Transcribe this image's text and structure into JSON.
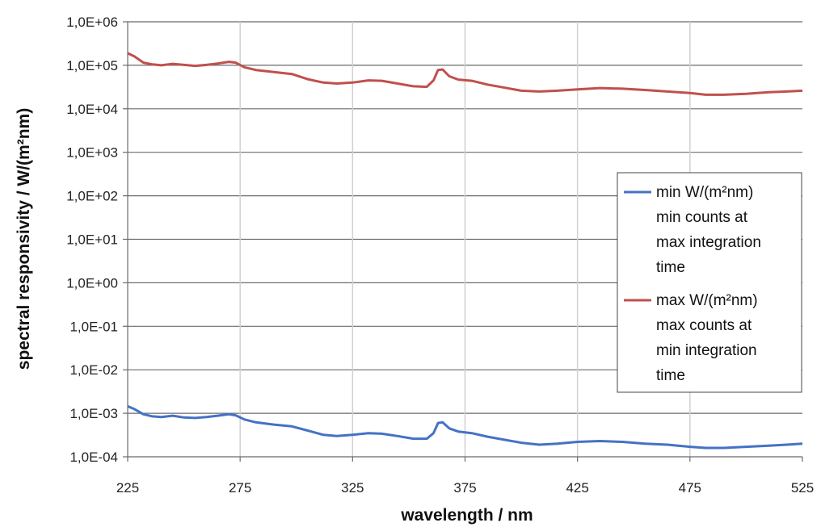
{
  "chart_data": {
    "type": "line",
    "xlabel": "wavelength / nm",
    "ylabel": "spectral responsivity / W/(m²nm)",
    "x_ticks": [
      "225",
      "275",
      "325",
      "375",
      "425",
      "475",
      "525"
    ],
    "y_ticks": [
      "1,0E-04",
      "1,0E-03",
      "1,0E-02",
      "1,0E-01",
      "1,0E+00",
      "1,0E+01",
      "1,0E+02",
      "1,0E+03",
      "1,0E+04",
      "1,0E+05",
      "1,0E+06"
    ],
    "xlim": [
      225,
      525
    ],
    "ylim": [
      0.0001,
      1000000
    ],
    "y_scale": "log",
    "grid": true,
    "legend_position": "right",
    "series": [
      {
        "name": "min W/(m²nm) min counts at max integration time",
        "color": "#4472C4",
        "x": [
          225,
          228,
          232,
          236,
          240,
          245,
          250,
          255,
          260,
          265,
          270,
          273,
          277,
          282,
          290,
          298,
          305,
          312,
          318,
          325,
          332,
          338,
          345,
          352,
          358,
          361,
          363,
          365,
          368,
          372,
          378,
          385,
          392,
          400,
          408,
          416,
          425,
          435,
          445,
          455,
          465,
          475,
          482,
          490,
          500,
          510,
          518,
          525
        ],
        "y": [
          0.00145,
          0.00125,
          0.00095,
          0.00085,
          0.00082,
          0.00088,
          0.0008,
          0.00078,
          0.00082,
          0.00088,
          0.00095,
          0.0009,
          0.00072,
          0.00062,
          0.00055,
          0.0005,
          0.0004,
          0.00032,
          0.0003,
          0.00032,
          0.00035,
          0.00034,
          0.0003,
          0.00026,
          0.00026,
          0.00035,
          0.0006,
          0.00062,
          0.00045,
          0.00038,
          0.00035,
          0.00029,
          0.00025,
          0.00021,
          0.00019,
          0.0002,
          0.00022,
          0.00023,
          0.00022,
          0.0002,
          0.00019,
          0.00017,
          0.00016,
          0.00016,
          0.00017,
          0.00018,
          0.00019,
          0.0002
        ]
      },
      {
        "name": "max W/(m²nm) max counts at min integration time",
        "color": "#C0504D",
        "x": [
          225,
          228,
          232,
          236,
          240,
          245,
          250,
          255,
          260,
          265,
          270,
          273,
          277,
          282,
          290,
          298,
          305,
          312,
          318,
          325,
          332,
          338,
          345,
          352,
          358,
          361,
          363,
          365,
          368,
          372,
          378,
          385,
          392,
          400,
          408,
          416,
          425,
          435,
          445,
          455,
          465,
          475,
          482,
          490,
          500,
          510,
          518,
          525
        ],
        "y": [
          190000,
          160000,
          115000,
          105000,
          100000,
          108000,
          102000,
          97000,
          102000,
          110000,
          120000,
          115000,
          90000,
          78000,
          70000,
          63000,
          48000,
          40000,
          38000,
          40000,
          45000,
          44000,
          38000,
          33000,
          32000,
          45000,
          78000,
          80000,
          56000,
          47000,
          44000,
          36000,
          31000,
          26000,
          25000,
          26000,
          28000,
          30000,
          29000,
          27000,
          25000,
          23000,
          21000,
          21000,
          22000,
          24000,
          25000,
          26000
        ]
      }
    ],
    "legend_lines": [
      [
        "min W/(m²nm)",
        "min counts at",
        "max integration",
        "time"
      ],
      [
        "max W/(m²nm)",
        "max counts at",
        "min integration",
        "time"
      ]
    ]
  }
}
